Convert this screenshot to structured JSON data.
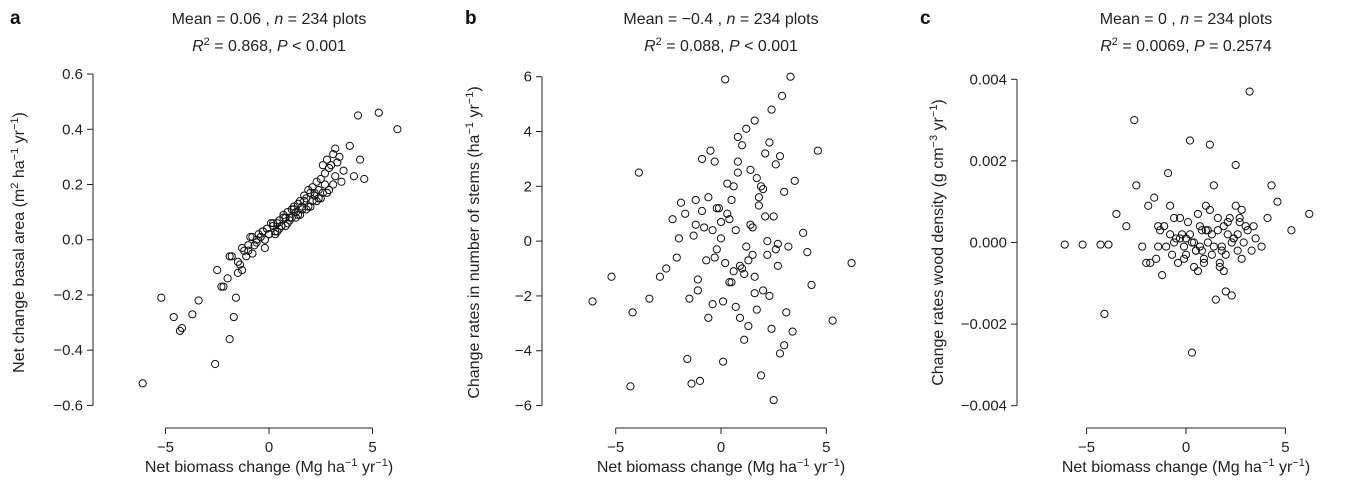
{
  "chart_data": [
    {
      "type": "scatter",
      "panel_label": "a",
      "title_line1": "Mean = 0.06 , n = 234 plots",
      "title_line2": "R2 = 0.868, P < 0.001",
      "title_parts": {
        "mean": "Mean = 0.06 , ",
        "n_italic": "n",
        "n_rest": " = 234 plots",
        "r": "R",
        "r_sup": "2",
        "r_rest": " = 0.868, ",
        "p_italic": "P",
        "p_rest": " < 0.001"
      },
      "xlabel": "Net biomass change (Mg ha−1 yr−1)",
      "xlabel_parts": {
        "pre": "Net biomass change (Mg ha",
        "sup1": "−1",
        "mid": " yr",
        "sup2": "−1",
        "post": ")"
      },
      "ylabel": "Net change basal area (m2 ha−1 yr−1)",
      "ylabel_parts": {
        "pre": "Net change basal area (m",
        "sup1": "2",
        "mid1": " ha",
        "sup2": "−1",
        "mid2": " yr",
        "sup3": "−1",
        "post": ")"
      },
      "xlim": [
        -8.5,
        8.5
      ],
      "ylim": [
        -0.66,
        0.64
      ],
      "xticks": [
        -5,
        0,
        5
      ],
      "xtick_labels": [
        "−5",
        "0",
        "5"
      ],
      "yticks": [
        -0.6,
        -0.4,
        -0.2,
        0.0,
        0.2,
        0.4,
        0.6
      ],
      "ytick_labels": [
        "−0.6",
        "−0.4",
        "−0.2",
        "0.0",
        "0.2",
        "0.4",
        "0.6"
      ],
      "x": [
        -6.1,
        -5.2,
        -4.6,
        -4.3,
        -4.2,
        -3.7,
        -3.4,
        -2.6,
        -2.5,
        -2.2,
        -2.0,
        -1.9,
        -1.8,
        -1.7,
        -1.6,
        -1.5,
        -1.4,
        -1.3,
        -1.2,
        -1.1,
        -1.0,
        -0.9,
        -0.8,
        -0.7,
        -0.6,
        -0.5,
        -0.4,
        -0.3,
        -0.2,
        -0.1,
        0.0,
        0.1,
        0.2,
        0.3,
        0.4,
        0.5,
        0.6,
        0.7,
        0.8,
        0.9,
        1.0,
        1.1,
        1.2,
        1.3,
        1.4,
        1.5,
        1.6,
        1.7,
        1.8,
        1.9,
        2.0,
        2.1,
        2.2,
        2.3,
        2.4,
        2.5,
        2.6,
        2.7,
        2.8,
        2.9,
        3.0,
        3.1,
        3.2,
        3.3,
        3.4,
        3.6,
        3.9,
        4.1,
        4.3,
        4.4,
        4.6,
        5.3,
        6.2,
        -1.9,
        -1.3,
        -0.8,
        -0.3,
        0.2,
        0.7,
        1.2,
        1.7,
        2.2,
        2.7,
        3.2,
        0.5,
        1.0,
        1.5,
        2.0,
        2.5,
        0.3,
        0.8,
        1.3,
        1.8,
        2.3,
        2.8,
        -0.2,
        0.4,
        0.9,
        1.4,
        1.9,
        2.4,
        2.9,
        3.5,
        -1.0,
        -0.6,
        0.0,
        0.6,
        1.1,
        1.6,
        2.1,
        2.6,
        3.1,
        -2.3,
        -1.5
      ],
      "y": [
        -0.52,
        -0.21,
        -0.28,
        -0.33,
        -0.32,
        -0.27,
        -0.22,
        -0.45,
        -0.11,
        -0.17,
        -0.14,
        -0.36,
        -0.06,
        -0.28,
        -0.21,
        -0.08,
        -0.09,
        -0.11,
        -0.04,
        -0.06,
        -0.02,
        0.01,
        -0.05,
        -0.02,
        0.0,
        0.02,
        0.01,
        0.03,
        -0.03,
        0.04,
        0.02,
        0.06,
        0.05,
        0.03,
        0.06,
        0.07,
        0.05,
        0.09,
        0.08,
        0.1,
        0.08,
        0.11,
        0.12,
        0.1,
        0.13,
        0.14,
        0.12,
        0.16,
        0.15,
        0.18,
        0.17,
        0.19,
        0.16,
        0.21,
        0.18,
        0.22,
        0.27,
        0.24,
        0.29,
        0.26,
        0.27,
        0.31,
        0.33,
        0.28,
        0.3,
        0.25,
        0.34,
        0.23,
        0.45,
        0.29,
        0.22,
        0.46,
        0.4,
        -0.06,
        -0.03,
        0.01,
        0.03,
        0.06,
        0.08,
        0.11,
        0.14,
        0.17,
        0.2,
        0.23,
        0.04,
        0.07,
        0.09,
        0.12,
        0.15,
        0.02,
        0.05,
        0.08,
        0.11,
        0.14,
        0.17,
        0.0,
        0.03,
        0.06,
        0.09,
        0.12,
        0.15,
        0.18,
        0.21,
        -0.04,
        -0.01,
        0.02,
        0.05,
        0.08,
        0.11,
        0.14,
        0.17,
        0.2,
        -0.17,
        -0.12
      ]
    },
    {
      "type": "scatter",
      "panel_label": "b",
      "title_line1": "Mean = −0.4 , n = 234 plots",
      "title_line2": "R2 = 0.088, P < 0.001",
      "title_parts": {
        "mean": "Mean = −0.4 , ",
        "n_italic": "n",
        "n_rest": " = 234 plots",
        "r": "R",
        "r_sup": "2",
        "r_rest": " = 0.088, ",
        "p_italic": "P",
        "p_rest": " < 0.001"
      },
      "xlabel": "Net biomass change (Mg ha−1 yr−1)",
      "xlabel_parts": {
        "pre": "Net biomass change (Mg ha",
        "sup1": "−1",
        "mid": " yr",
        "sup2": "−1",
        "post": ")"
      },
      "ylabel": "Change rates in number of stems (ha−1 yr−1)",
      "ylabel_parts": {
        "pre": "Change rates in number of stems (ha",
        "sup1": "−1",
        "mid": " yr",
        "sup2": "−1",
        "post": ")"
      },
      "xlim": [
        -8.5,
        8.5
      ],
      "ylim": [
        -6.6,
        6.5
      ],
      "xticks": [
        -5,
        0,
        5
      ],
      "xtick_labels": [
        "−5",
        "0",
        "5"
      ],
      "yticks": [
        -6,
        -4,
        -2,
        0,
        2,
        4,
        6
      ],
      "ytick_labels": [
        "−6",
        "−4",
        "−2",
        "0",
        "2",
        "4",
        "6"
      ],
      "x": [
        -6.1,
        -5.2,
        -4.3,
        -4.2,
        -3.9,
        -3.4,
        -2.9,
        -2.6,
        -2.3,
        -2.1,
        -1.9,
        -1.7,
        -1.6,
        -1.4,
        -1.3,
        -1.2,
        -1.1,
        -1.0,
        -0.9,
        -0.8,
        -0.7,
        -0.6,
        -0.5,
        -0.4,
        -0.3,
        -0.2,
        -0.1,
        0.0,
        0.1,
        0.2,
        0.3,
        0.4,
        0.5,
        0.6,
        0.7,
        0.8,
        0.9,
        1.0,
        1.1,
        1.2,
        1.3,
        1.4,
        1.5,
        1.6,
        1.7,
        1.8,
        1.9,
        2.0,
        2.1,
        2.2,
        2.3,
        2.4,
        2.5,
        2.6,
        2.7,
        2.8,
        2.9,
        3.0,
        3.1,
        3.2,
        3.3,
        3.5,
        3.9,
        4.1,
        4.3,
        4.6,
        5.3,
        6.2,
        0.3,
        1.1,
        2.5,
        -1.5,
        -0.9,
        0.2,
        0.8,
        1.6,
        2.4,
        3.0,
        -0.4,
        0.6,
        1.4,
        2.2,
        1.0,
        1.8,
        -0.6,
        0.4,
        1.2,
        2.0,
        2.8,
        -1.1,
        0.0,
        0.9,
        1.7,
        2.6,
        3.4,
        -0.2,
        0.7,
        1.5,
        2.3,
        1.3,
        1.9,
        0.5,
        -2.0,
        -1.2,
        -0.3,
        0.1,
        0.8,
        1.6,
        2.1,
        2.7
      ],
      "y": [
        -2.2,
        -1.3,
        -5.3,
        -2.6,
        2.5,
        -2.1,
        -1.3,
        -1.0,
        0.8,
        -0.6,
        1.4,
        1.0,
        -4.3,
        -5.2,
        0.2,
        0.6,
        -1.4,
        -5.1,
        3.0,
        0.5,
        -0.7,
        1.6,
        3.3,
        -2.3,
        2.9,
        -0.3,
        1.2,
        0.1,
        -4.4,
        5.9,
        1.0,
        -1.5,
        1.5,
        2.0,
        0.4,
        3.8,
        -2.8,
        -1.0,
        -3.6,
        4.1,
        -3.1,
        0.6,
        -0.5,
        4.4,
        -2.5,
        1.3,
        -4.9,
        -1.8,
        3.2,
        0.0,
        -2.0,
        4.8,
        -5.8,
        2.8,
        -0.9,
        -4.1,
        5.3,
        -3.8,
        -2.6,
        -0.2,
        6.0,
        2.2,
        0.3,
        -0.4,
        -1.6,
        3.3,
        -2.9,
        -0.8,
        2.1,
        -1.2,
        0.9,
        -2.1,
        1.1,
        -0.8,
        2.5,
        -1.9,
        -3.2,
        1.8,
        0.4,
        -1.1,
        2.6,
        -0.5,
        3.5,
        1.6,
        -2.8,
        0.8,
        -0.2,
        1.9,
        3.1,
        -1.8,
        0.7,
        -0.9,
        2.3,
        -0.3,
        -3.3,
        1.2,
        -2.4,
        0.5,
        3.6,
        -0.7,
        2.0,
        -1.5,
        0.1,
        1.5,
        -0.6,
        -2.2,
        2.9,
        -1.3,
        0.9,
        -0.1
      ]
    },
    {
      "type": "scatter",
      "panel_label": "c",
      "title_line1": "Mean = 0 , n = 234 plots",
      "title_line2": "R2 = 0.0069, P = 0.2574",
      "title_parts": {
        "mean": "Mean = 0 , ",
        "n_italic": "n",
        "n_rest": " = 234 plots",
        "r": "R",
        "r_sup": "2",
        "r_rest": " = 0.0069, ",
        "p_italic": "P",
        "p_rest": " = 0.2574"
      },
      "xlabel": "Net biomass change (Mg ha−1 yr−1)",
      "xlabel_parts": {
        "pre": "Net biomass change (Mg ha",
        "sup1": "−1",
        "mid": " yr",
        "sup2": "−1",
        "post": ")"
      },
      "ylabel": "Change rates wood density (g cm−3 yr−1)",
      "ylabel_parts": {
        "pre": "Change rates wood density (g cm",
        "sup1": "−3",
        "mid": " yr",
        "sup2": "−1",
        "post": ")"
      },
      "xlim": [
        -8.5,
        8.5
      ],
      "ylim": [
        -0.0044,
        0.0044
      ],
      "xticks": [
        -5,
        0,
        5
      ],
      "xtick_labels": [
        "−5",
        "0",
        "5"
      ],
      "yticks": [
        -0.004,
        -0.002,
        0.0,
        0.002,
        0.004
      ],
      "ytick_labels": [
        "−0.004",
        "−0.002",
        "0.000",
        "0.002",
        "0.004"
      ],
      "x": [
        -6.1,
        -5.2,
        -4.3,
        -4.1,
        -3.9,
        -3.5,
        -3.0,
        -2.6,
        -2.5,
        -2.2,
        -2.0,
        -1.9,
        -1.8,
        -1.6,
        -1.5,
        -1.4,
        -1.3,
        -1.2,
        -1.1,
        -1.0,
        -0.9,
        -0.8,
        -0.7,
        -0.6,
        -0.5,
        -0.4,
        -0.3,
        -0.2,
        -0.1,
        0.0,
        0.1,
        0.2,
        0.3,
        0.4,
        0.5,
        0.6,
        0.7,
        0.8,
        0.9,
        1.0,
        1.1,
        1.2,
        1.3,
        1.4,
        1.5,
        1.6,
        1.7,
        1.8,
        1.9,
        2.0,
        2.1,
        2.2,
        2.3,
        2.4,
        2.5,
        2.6,
        2.7,
        2.8,
        2.9,
        3.0,
        3.1,
        3.2,
        3.3,
        3.5,
        3.8,
        4.1,
        4.3,
        4.6,
        5.3,
        6.2,
        0.2,
        0.9,
        1.6,
        2.3,
        -0.3,
        0.5,
        1.2,
        1.9,
        2.6,
        0.0,
        0.7,
        1.4,
        2.1,
        2.8,
        -0.8,
        0.4,
        1.0,
        1.8,
        2.5,
        3.4,
        -1.4,
        -0.1,
        0.6,
        1.3,
        2.0,
        2.7,
        0.3,
        1.1,
        1.7,
        2.4,
        -0.6,
        0.8
      ],
      "y": [
        -5e-05,
        -5e-05,
        -5e-05,
        -0.00175,
        -5e-05,
        0.0007,
        0.0004,
        0.003,
        0.0014,
        -0.0001,
        -0.0005,
        0.0009,
        -0.0005,
        0.0011,
        -0.0004,
        -0.0001,
        0.0003,
        -0.0008,
        0.0004,
        -0.0001,
        0.0017,
        0.0009,
        -0.0003,
        0.0006,
        0.0001,
        -0.0005,
        0.0006,
        0.0002,
        -0.0004,
        0.0001,
        0.0005,
        0.0025,
        -0.0027,
        0.0,
        -0.0002,
        0.0007,
        -0.0001,
        0.0003,
        -0.0005,
        0.0009,
        0.0,
        0.0024,
        -0.0003,
        0.0014,
        -0.0014,
        0.0003,
        -0.0006,
        -0.0001,
        0.0004,
        -0.0012,
        0.0002,
        0.0006,
        -0.0013,
        0.0001,
        0.0019,
        -0.0002,
        0.0005,
        0.0008,
        0.0,
        0.0004,
        0.0003,
        0.0037,
        -0.0002,
        0.0001,
        -0.0001,
        0.0006,
        0.0014,
        0.001,
        0.0003,
        0.0007,
        0.0002,
        -0.0004,
        0.0006,
        0.0,
        0.0001,
        -0.0002,
        0.0008,
        -0.0007,
        0.0002,
        -0.0003,
        0.0004,
        -0.0001,
        0.0005,
        -0.0004,
        0.0002,
        -0.0006,
        0.0003,
        -0.0002,
        0.0009,
        0.0004,
        0.0004,
        -0.0001,
        -0.0007,
        0.0002,
        -0.0003,
        0.0006,
        0.0,
        0.0003,
        -0.0005,
        0.0001,
        0.0,
        -0.0002
      ]
    }
  ]
}
